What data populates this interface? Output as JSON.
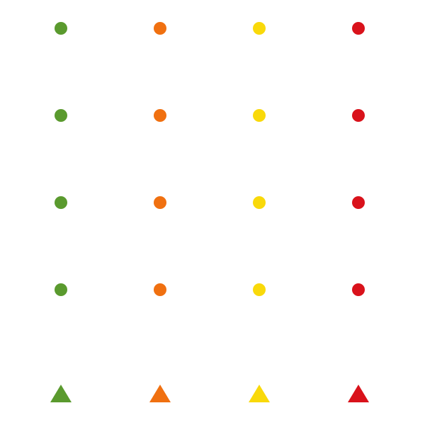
{
  "columns": [
    {
      "color": "#5A9A2E",
      "dots": 4,
      "marker": "triangle"
    },
    {
      "color": "#F07010",
      "dots": 4,
      "marker": "triangle"
    },
    {
      "color": "#F9D90A",
      "dots": 4,
      "marker": "triangle"
    },
    {
      "color": "#D9121B",
      "dots": 4,
      "marker": "triangle"
    }
  ]
}
